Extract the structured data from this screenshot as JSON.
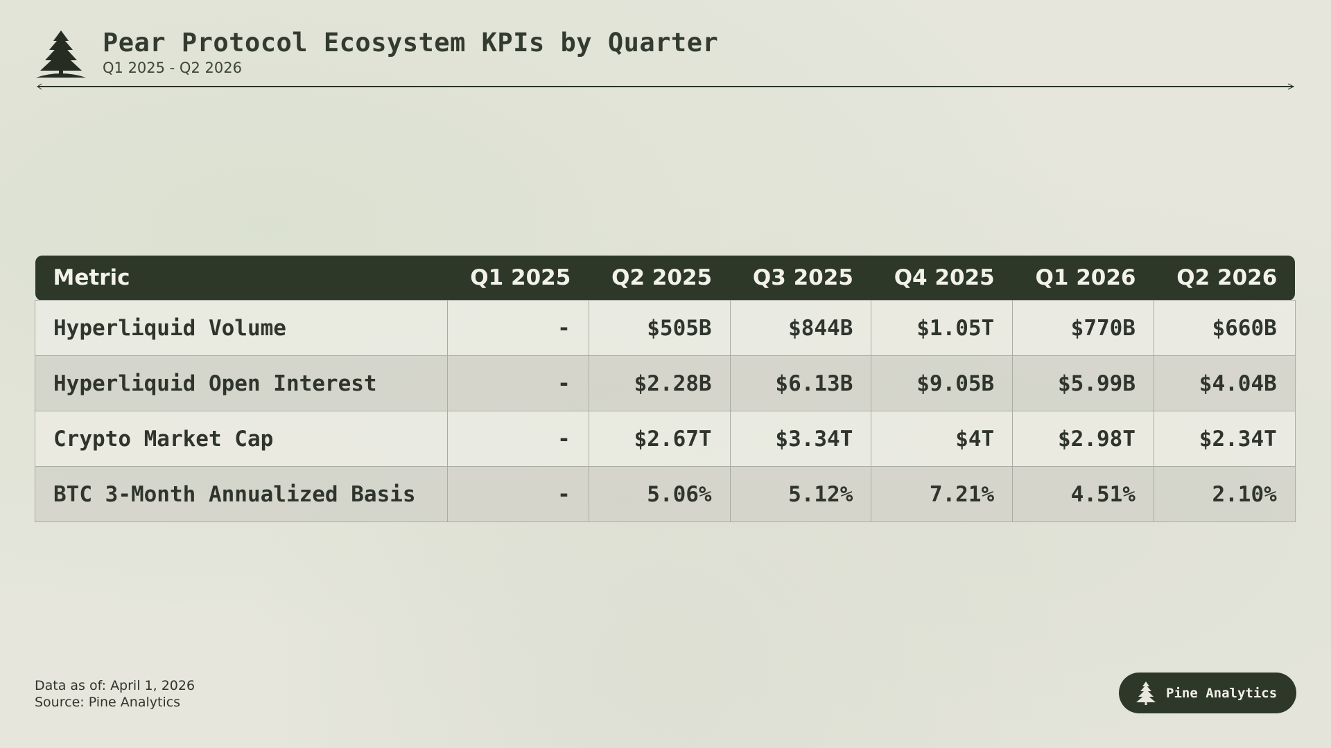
{
  "header": {
    "title": "Pear Protocol Ecosystem KPIs by Quarter",
    "subtitle": "Q1 2025 - Q2 2026",
    "logo_icon": "pine-tree-icon"
  },
  "colors": {
    "header_bg": "#2e3828",
    "background": "#e6e6dc",
    "text": "#2f352c"
  },
  "chart_data": {
    "type": "table",
    "title": "Pear Protocol Ecosystem KPIs by Quarter",
    "subtitle": "Q1 2025 - Q2 2026",
    "columns": [
      "Metric",
      "Q1 2025",
      "Q2 2025",
      "Q3 2025",
      "Q4 2025",
      "Q1 2026",
      "Q2 2026"
    ],
    "rows": [
      [
        "Hyperliquid Volume",
        "-",
        "$505B",
        "$844B",
        "$1.05T",
        "$770B",
        "$660B"
      ],
      [
        "Hyperliquid Open Interest",
        "-",
        "$2.28B",
        "$6.13B",
        "$9.05B",
        "$5.99B",
        "$4.04B"
      ],
      [
        "Crypto Market Cap",
        "-",
        "$2.67T",
        "$3.34T",
        "$4T",
        "$2.98T",
        "$2.34T"
      ],
      [
        "BTC 3-Month Annualized Basis",
        "-",
        "5.06%",
        "5.12%",
        "7.21%",
        "4.51%",
        "2.10%"
      ]
    ]
  },
  "footer": {
    "data_as_of": "Data as of: April 1, 2026",
    "source": "Source: Pine Analytics",
    "badge_label": "Pine Analytics",
    "badge_icon": "pine-tree-icon"
  }
}
